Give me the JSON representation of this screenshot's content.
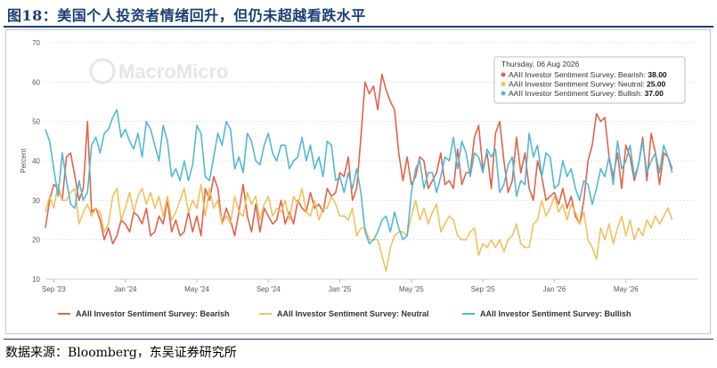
{
  "figure_title": "图18：美国个人投资者情绪回升，但仍未超越看跌水平",
  "source_note": "数据来源：Bloomberg，东吴证券研究所",
  "watermark": "MacroMicro",
  "colors": {
    "bearish": "#e0634d",
    "neutral": "#f0c15e",
    "bullish": "#55b8d1",
    "title": "#1a3f73"
  },
  "tooltip": {
    "date": "Thursday, 06 Aug 2026",
    "rows": [
      {
        "label": "AAII Investor Sentiment Survey: Bearish:",
        "value": "38.00",
        "series": "bearish"
      },
      {
        "label": "AAII Investor Sentiment Survey: Neutral:",
        "value": "25.00",
        "series": "neutral"
      },
      {
        "label": "AAII Investor Sentiment Survey: Bullish:",
        "value": "37.00",
        "series": "bullish"
      }
    ]
  },
  "chart_data": {
    "type": "line",
    "ylabel": "Percent",
    "ylim": [
      10,
      70
    ],
    "yticks": [
      10,
      20,
      30,
      40,
      50,
      60,
      70
    ],
    "xlim": [
      0,
      155
    ],
    "xticks": [
      {
        "label": "Sep '23",
        "x": 2
      },
      {
        "label": "Jan '24",
        "x": 19
      },
      {
        "label": "May '24",
        "x": 36
      },
      {
        "label": "Sep '24",
        "x": 53
      },
      {
        "label": "Jan '25",
        "x": 70
      },
      {
        "label": "May '25",
        "x": 87
      },
      {
        "label": "Sep '25",
        "x": 104
      },
      {
        "label": "Jan '26",
        "x": 121
      },
      {
        "label": "May '26",
        "x": 138
      }
    ],
    "x_unit": "weeks",
    "legend_position": "bottom",
    "grid": true,
    "series": [
      {
        "name": "AAII Investor Sentiment Survey: Bearish",
        "key": "bearish",
        "values": [
          23,
          30,
          34,
          33,
          30,
          41,
          42,
          36,
          30,
          33,
          50,
          27,
          28,
          25,
          20,
          23,
          19,
          21,
          25,
          24,
          22,
          27,
          26,
          24,
          28,
          21,
          22,
          26,
          24,
          30,
          22,
          25,
          21,
          22,
          27,
          22,
          26,
          21,
          33,
          30,
          36,
          33,
          24,
          28,
          25,
          21,
          27,
          34,
          26,
          22,
          29,
          22,
          28,
          26,
          24,
          25,
          30,
          24,
          27,
          24,
          30,
          28,
          27,
          32,
          28,
          29,
          27,
          33,
          31,
          32,
          37,
          36,
          41,
          30,
          33,
          46,
          60,
          57,
          59,
          53,
          62,
          58,
          55,
          53,
          42,
          35,
          41,
          34,
          36,
          41,
          40,
          33,
          35,
          37,
          42,
          34,
          35,
          33,
          43,
          34,
          37,
          37,
          46,
          49,
          38,
          42,
          33,
          47,
          50,
          40,
          32,
          35,
          46,
          37,
          42,
          33,
          30,
          40,
          36,
          30,
          31,
          32,
          29,
          33,
          28,
          31,
          26,
          24,
          30,
          40,
          44,
          52,
          50,
          51,
          41,
          36,
          42,
          33,
          44,
          41,
          35,
          39,
          46,
          35,
          47,
          42,
          34,
          42,
          41,
          38
        ]
      },
      {
        "name": "AAII Investor Sentiment Survey: Neutral",
        "key": "neutral",
        "values": [
          27,
          31,
          28,
          34,
          30,
          30,
          32,
          33,
          24,
          27,
          29,
          26,
          28,
          27,
          22,
          24,
          31,
          33,
          25,
          28,
          32,
          27,
          31,
          33,
          29,
          32,
          28,
          31,
          26,
          31,
          25,
          27,
          30,
          33,
          27,
          30,
          28,
          34,
          26,
          33,
          28,
          30,
          24,
          26,
          24,
          31,
          27,
          26,
          32,
          29,
          31,
          25,
          29,
          31,
          26,
          28,
          27,
          30,
          25,
          31,
          29,
          33,
          27,
          26,
          30,
          25,
          28,
          28,
          31,
          29,
          26,
          26,
          25,
          28,
          21,
          23,
          23,
          20,
          20,
          20,
          16,
          12,
          18,
          21,
          22,
          22,
          21,
          26,
          30,
          25,
          28,
          24,
          27,
          29,
          22,
          24,
          26,
          25,
          21,
          20,
          20,
          22,
          23,
          16,
          19,
          18,
          20,
          18,
          20,
          17,
          20,
          21,
          24,
          19,
          18,
          18,
          24,
          25,
          30,
          26,
          28,
          31,
          27,
          29,
          25,
          29,
          27,
          24,
          27,
          20,
          18,
          15,
          23,
          20,
          24,
          19,
          23,
          26,
          21,
          25,
          20,
          23,
          21,
          25,
          23,
          26,
          24,
          26,
          28,
          25
        ]
      },
      {
        "name": "AAII Investor Sentiment Survey: Bullish",
        "key": "bullish",
        "values": [
          48,
          45,
          38,
          31,
          42,
          35,
          29,
          28,
          35,
          30,
          32,
          44,
          46,
          42,
          47,
          48,
          51,
          53,
          46,
          48,
          45,
          43,
          47,
          41,
          50,
          48,
          44,
          40,
          49,
          45,
          36,
          38,
          35,
          40,
          35,
          39,
          49,
          47,
          36,
          35,
          41,
          47,
          44,
          50,
          48,
          38,
          41,
          37,
          47,
          45,
          40,
          39,
          44,
          47,
          42,
          40,
          44,
          44,
          38,
          40,
          41,
          46,
          40,
          44,
          38,
          41,
          36,
          45,
          44,
          35,
          36,
          32,
          37,
          33,
          38,
          32,
          22,
          19,
          20,
          22,
          25,
          26,
          22,
          27,
          23,
          20,
          21,
          32,
          38,
          40,
          33,
          37,
          37,
          32,
          36,
          41,
          40,
          46,
          38,
          45,
          42,
          36,
          42,
          41,
          37,
          43,
          41,
          43,
          32,
          34,
          39,
          41,
          31,
          35,
          34,
          47,
          41,
          44,
          36,
          42,
          41,
          33,
          34,
          40,
          36,
          38,
          33,
          30,
          35,
          34,
          29,
          33,
          38,
          36,
          41,
          34,
          45,
          38,
          40,
          44,
          36,
          39,
          45,
          37,
          40,
          42,
          37,
          44,
          41,
          37
        ]
      }
    ]
  }
}
